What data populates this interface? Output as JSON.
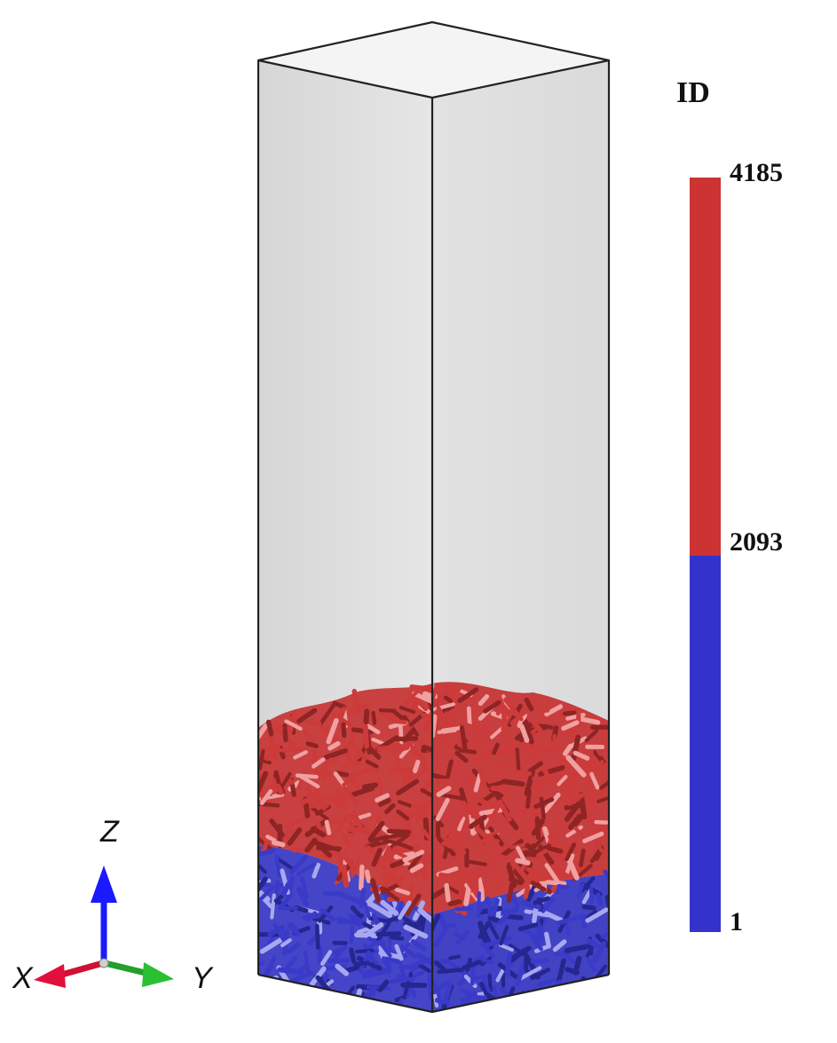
{
  "colorbar": {
    "title": "ID",
    "tick_max": "4185",
    "tick_mid": "2093",
    "tick_min": "1",
    "values": {
      "max": 4185,
      "mid": 2093,
      "min": 1
    },
    "colors": {
      "upper": "#cc3333",
      "lower": "#3333cc"
    }
  },
  "triad": {
    "z_label": "Z",
    "x_label": "X",
    "y_label": "Y",
    "colors": {
      "z": "#1a1aff",
      "x": "#e0103a",
      "y": "#22a02a"
    }
  },
  "particles": {
    "upper_color": "#cc3a3a",
    "lower_color": "#3a3ac8"
  },
  "box": {
    "wall_color": "#e2e2e2",
    "edge_color": "#222222"
  }
}
